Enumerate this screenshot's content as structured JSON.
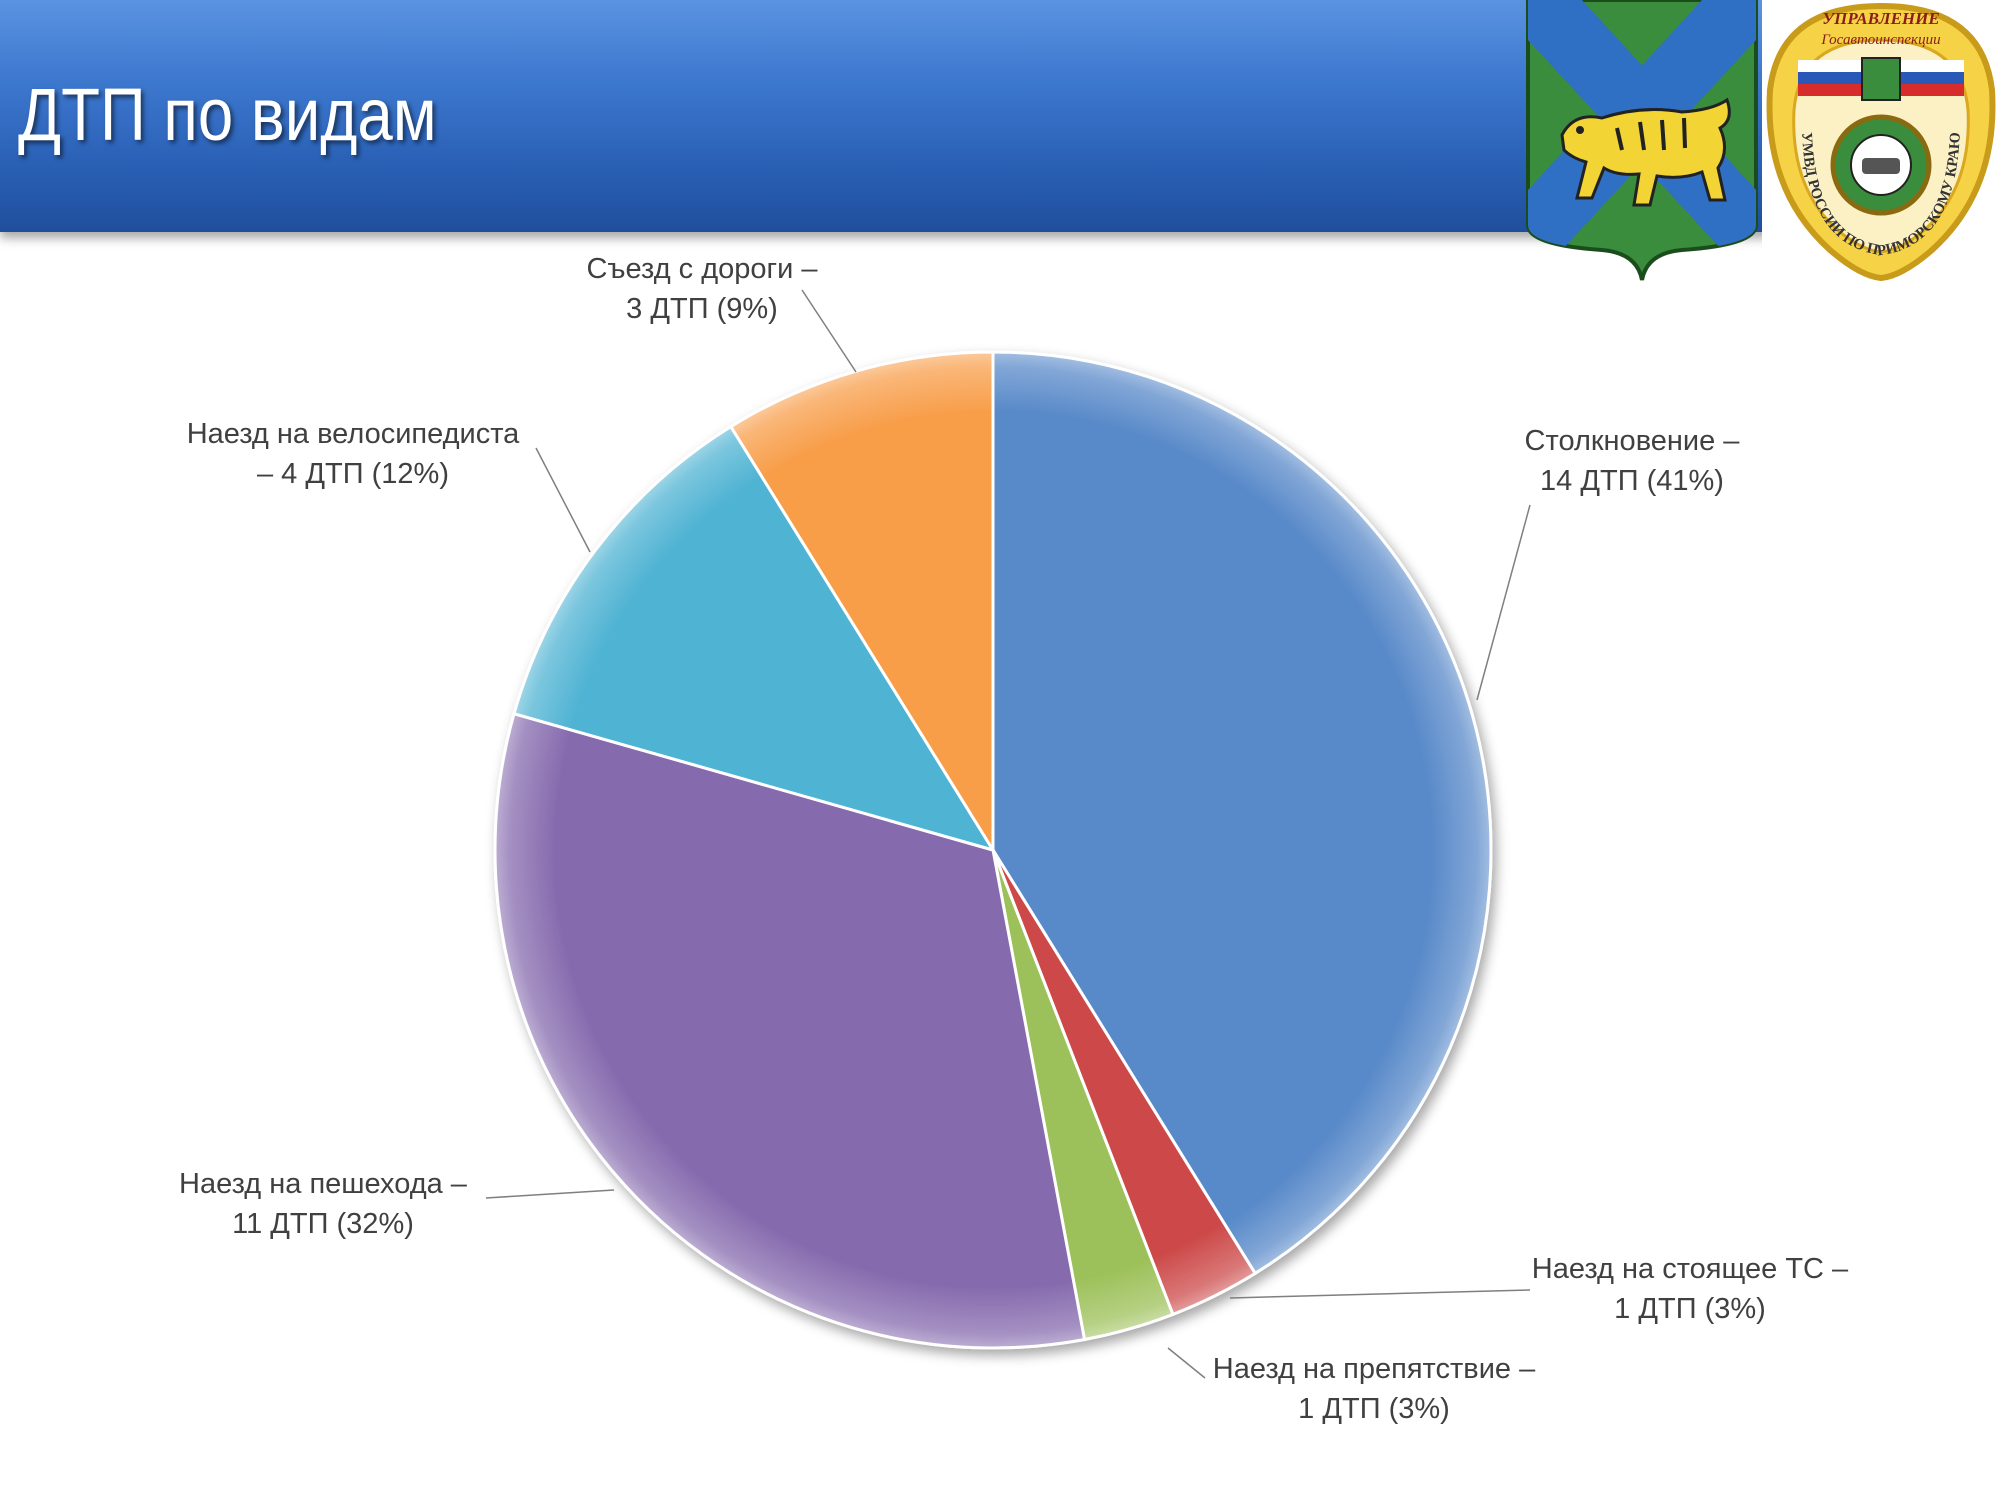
{
  "header": {
    "title": "ДТП по видам",
    "bg_color": "#3a74cc"
  },
  "emblems": {
    "coat_of_arms": {
      "icon": "primorye-coat-of-arms-tiger"
    },
    "gai_badge": {
      "icon": "gibdd-primorye-badge",
      "text_top": "УПРАВЛЕНИЕ",
      "text_sub": "Госавтоинспекции",
      "text_ring": "УМВД РОССИИ ПО ПРИМОРСКОМУ КРАЮ"
    }
  },
  "chart_data": {
    "type": "pie",
    "start_angle_deg": 0,
    "direction": "clockwise",
    "slices": [
      {
        "name": "Столкновение",
        "value": 14,
        "percent": 41,
        "color": "#5889c9",
        "label_lines": [
          "Столкновение –",
          "14 ДТП (41%)"
        ]
      },
      {
        "name": "Наезд на стоящее ТС",
        "value": 1,
        "percent": 3,
        "color": "#cd4a4a",
        "label_lines": [
          "Наезд на стоящее ТС –",
          "1 ДТП (3%)"
        ]
      },
      {
        "name": "Наезд на препятствие",
        "value": 1,
        "percent": 3,
        "color": "#9dc15a",
        "label_lines": [
          "Наезд на препятствие –",
          "1 ДТП  (3%)"
        ]
      },
      {
        "name": "Наезд на пешехода",
        "value": 11,
        "percent": 32,
        "color": "#866bae",
        "label_lines": [
          "Наезд на пешехода –",
          "11 ДТП (32%)"
        ]
      },
      {
        "name": "Наезд на велосипедиста",
        "value": 4,
        "percent": 12,
        "color": "#4fb3d3",
        "label_lines": [
          "Наезд на велосипедиста",
          "– 4 ДТП (12%)"
        ]
      },
      {
        "name": "Съезд с дороги",
        "value": 3,
        "percent": 9,
        "color": "#f89e4a",
        "label_lines": [
          "Съезд с дороги –",
          "3 ДТП (9%)"
        ]
      }
    ]
  }
}
